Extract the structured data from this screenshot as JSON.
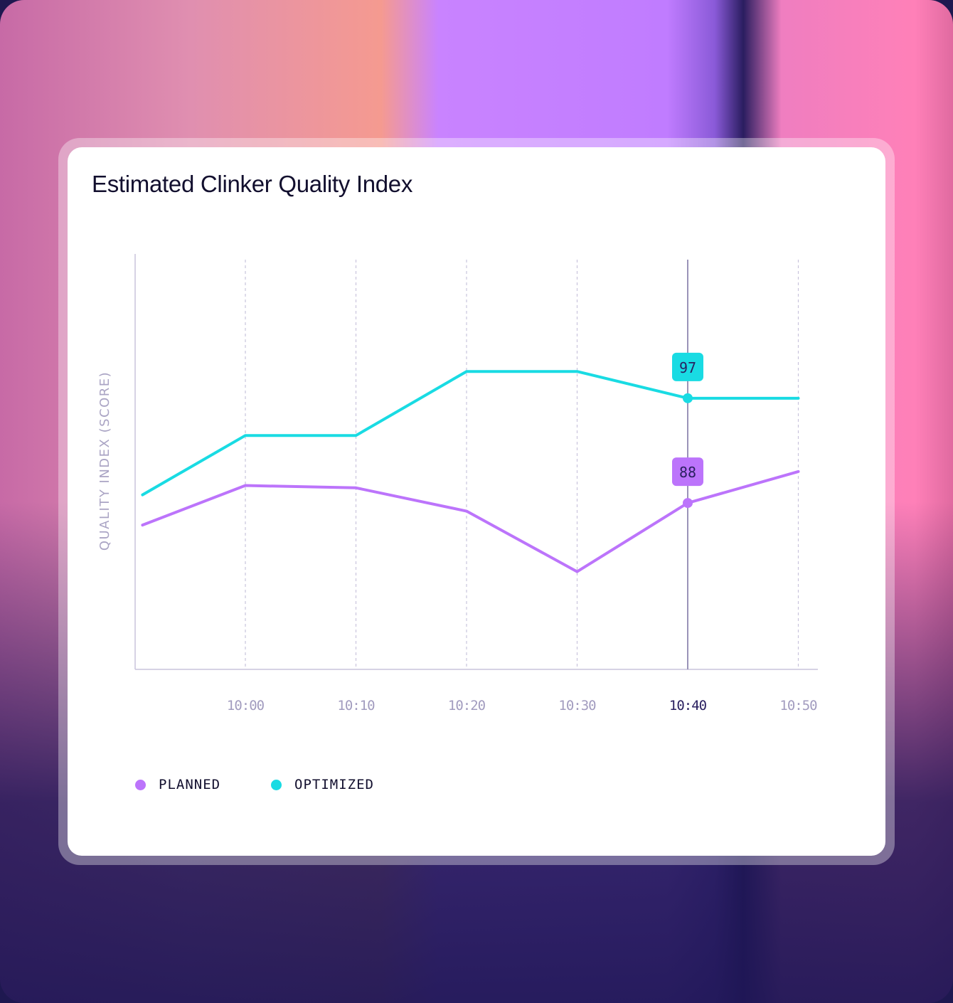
{
  "chart_data": {
    "type": "line",
    "title": "Estimated Clinker Quality Index",
    "xlabel": "",
    "ylabel": "QUALITY INDEX (SCORE)",
    "x_minutes_from_10_00": [
      -9.3,
      0,
      10,
      20,
      30,
      40,
      50
    ],
    "x_tick_labels": [
      "10:00",
      "10:10",
      "10:20",
      "10:30",
      "10:40",
      "10:50"
    ],
    "highlighted_tick": "10:40",
    "ylim": [
      73.7,
      109.4
    ],
    "grid": "vertical dashed",
    "legend_placement": "bottom-left",
    "series": [
      {
        "name": "PLANNED",
        "color": "#bc74fb",
        "values": [
          86.1,
          89.5,
          89.3,
          87.3,
          82.1,
          88.0,
          90.7
        ]
      },
      {
        "name": "OPTIMIZED",
        "color": "#19dbe3",
        "values": [
          88.7,
          93.8,
          93.8,
          99.3,
          99.3,
          97.0,
          97.0
        ]
      }
    ],
    "annotations": [
      {
        "series": "OPTIMIZED",
        "at": "10:40",
        "label": "97"
      },
      {
        "series": "PLANNED",
        "at": "10:40",
        "label": "88"
      }
    ]
  }
}
